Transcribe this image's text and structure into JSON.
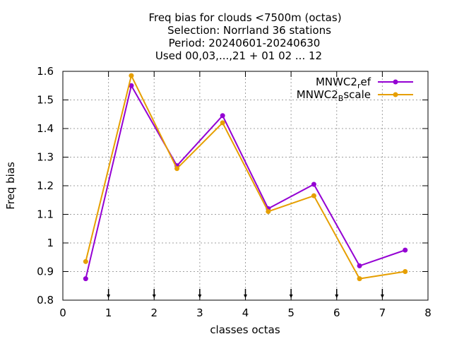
{
  "chart_data": {
    "type": "line",
    "title_lines": [
      "Freq bias  for clouds <7500m (octas)",
      "Selection: Norrland     36 stations",
      "Period: 20240601-20240630",
      "Used 00,03,...,21 + 01 02 ... 12"
    ],
    "xlabel": "classes octas",
    "ylabel": "Freq bias",
    "xlim": [
      0,
      8
    ],
    "ylim": [
      0.8,
      1.6
    ],
    "xticks": [
      "0",
      "1",
      "2",
      "3",
      "4",
      "5",
      "6",
      "7",
      "8"
    ],
    "yticks": [
      "0.8",
      "0.9",
      "1",
      "1.1",
      "1.2",
      "1.3",
      "1.4",
      "1.5",
      "1.6"
    ],
    "grid": true,
    "legend_position": "top-right",
    "x": [
      0.5,
      1.5,
      2.5,
      3.5,
      4.5,
      5.5,
      6.5,
      7.5
    ],
    "series": [
      {
        "name": "MNWC2_ref",
        "legend_base": "MNWC2",
        "legend_sub": "r",
        "legend_rest": "ef",
        "color": "#9400d3",
        "values": [
          0.875,
          1.55,
          1.27,
          1.445,
          1.12,
          1.205,
          0.92,
          0.975
        ]
      },
      {
        "name": "MNWC2_Bscale",
        "legend_base": "MNWC2",
        "legend_sub": "B",
        "legend_rest": "scale",
        "color": "#e69f00",
        "values": [
          0.935,
          1.585,
          1.26,
          1.42,
          1.11,
          1.165,
          0.875,
          0.9
        ]
      }
    ]
  }
}
